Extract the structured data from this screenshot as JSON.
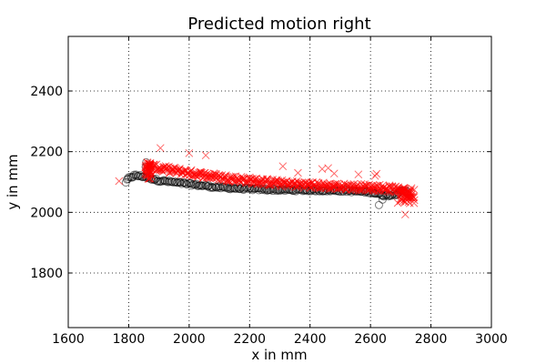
{
  "chart_data": {
    "type": "scatter",
    "title": "Predicted motion right",
    "xlabel": "x in mm",
    "ylabel": "y in mm",
    "xlim": [
      1600,
      3000
    ],
    "ylim": [
      1620,
      2580
    ],
    "xticks": [
      1600,
      1800,
      2000,
      2200,
      2400,
      2600,
      2800,
      3000
    ],
    "yticks": [
      1800,
      2000,
      2200,
      2400
    ],
    "grid": true,
    "legend": "none",
    "colors": {
      "predicted": "#ff0000",
      "observed": "#000000",
      "grid": "#000000"
    },
    "series": [
      {
        "marker": "circle-open",
        "color": "#000000",
        "opacity": 0.5,
        "curve": [
          [
            1790,
            2100
          ],
          [
            1800,
            2112
          ],
          [
            1820,
            2122
          ],
          [
            1850,
            2118
          ],
          [
            1900,
            2105
          ],
          [
            2000,
            2093
          ],
          [
            2100,
            2082
          ],
          [
            2200,
            2077
          ],
          [
            2300,
            2074
          ],
          [
            2400,
            2073
          ],
          [
            2500,
            2072
          ],
          [
            2600,
            2067
          ],
          [
            2650,
            2055
          ],
          [
            2680,
            2060
          ],
          [
            2700,
            2068
          ],
          [
            2720,
            2070
          ]
        ],
        "outliers": [
          [
            2628,
            2024
          ],
          [
            2640,
            2042
          ],
          [
            1858,
            2165
          ],
          [
            1856,
            2150
          ],
          [
            1862,
            2135
          ]
        ]
      },
      {
        "marker": "x",
        "color": "#ff0000",
        "opacity": 0.6,
        "curve": [
          [
            1855,
            2155
          ],
          [
            1900,
            2145
          ],
          [
            2000,
            2130
          ],
          [
            2100,
            2116
          ],
          [
            2200,
            2105
          ],
          [
            2300,
            2096
          ],
          [
            2400,
            2090
          ],
          [
            2500,
            2085
          ],
          [
            2600,
            2082
          ],
          [
            2650,
            2080
          ],
          [
            2700,
            2072
          ],
          [
            2720,
            2066
          ],
          [
            2740,
            2055
          ]
        ],
        "outliers": [
          [
            1768,
            2103
          ],
          [
            1905,
            2212
          ],
          [
            2000,
            2195
          ],
          [
            2055,
            2188
          ],
          [
            2310,
            2152
          ],
          [
            2440,
            2143
          ],
          [
            2460,
            2146
          ],
          [
            2480,
            2128
          ],
          [
            2620,
            2127
          ],
          [
            2615,
            2120
          ],
          [
            2700,
            2042
          ],
          [
            2715,
            1993
          ],
          [
            2730,
            2030
          ],
          [
            2745,
            2040
          ],
          [
            2560,
            2125
          ],
          [
            2360,
            2130
          ]
        ]
      }
    ]
  }
}
